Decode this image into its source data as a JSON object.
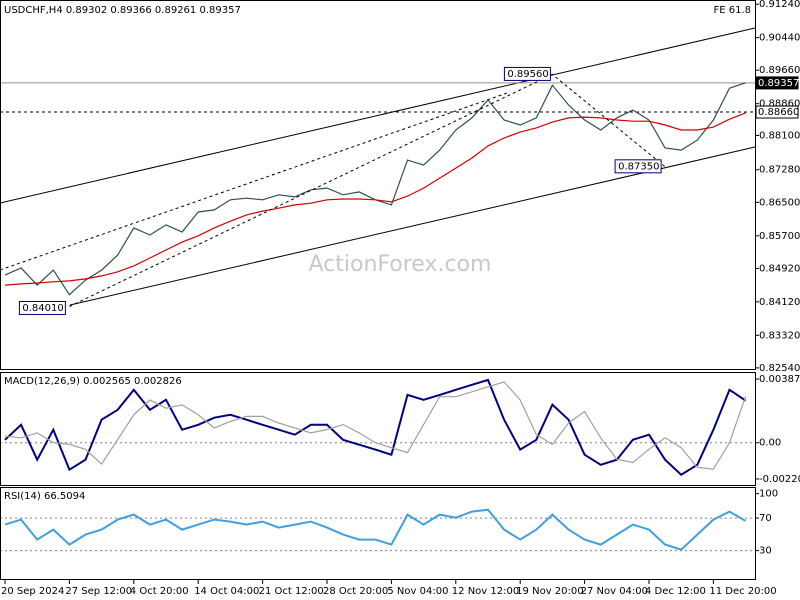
{
  "chart_data": [
    {
      "type": "line",
      "title": "USDCHF,H4  0.89302 0.89366 0.89261 0.89357",
      "fe_label": "FE 61.8",
      "watermark": "ActionForex.com",
      "categories": [
        "20 Sep 2024",
        null,
        null,
        null,
        "27 Sep 12:00",
        null,
        null,
        null,
        "4 Oct 20:00",
        null,
        null,
        null,
        "14 Oct 04:00",
        null,
        null,
        null,
        "21 Oct 12:00",
        null,
        null,
        null,
        "28 Oct 20:00",
        null,
        null,
        null,
        "5 Nov 04:00",
        null,
        null,
        null,
        "12 Nov 12:00",
        null,
        null,
        null,
        "19 Nov 20:00",
        null,
        null,
        null,
        "27 Nov 04:00",
        null,
        null,
        null,
        "4 Dec 12:00",
        null,
        null,
        null,
        "11 Dec 20:00",
        null,
        null
      ],
      "series": [
        {
          "color": "#2f4f4f",
          "values": [
            0.8476,
            0.8493,
            0.8452,
            0.8488,
            0.8429,
            0.8464,
            0.8488,
            0.8524,
            0.8589,
            0.8572,
            0.8596,
            0.8579,
            0.8627,
            0.8632,
            0.8656,
            0.866,
            0.8656,
            0.8668,
            0.8663,
            0.868,
            0.8684,
            0.8668,
            0.8675,
            0.8656,
            0.8644,
            0.8751,
            0.8739,
            0.8775,
            0.8823,
            0.8852,
            0.8895,
            0.8847,
            0.8835,
            0.8852,
            0.893,
            0.8883,
            0.8847,
            0.8823,
            0.8852,
            0.8871,
            0.8847,
            0.878,
            0.8775,
            0.8799,
            0.8847,
            0.8923,
            0.8936
          ]
        },
        {
          "color": "#d00000",
          "values": [
            0.8452,
            0.8455,
            0.8457,
            0.846,
            0.8462,
            0.8467,
            0.8474,
            0.8484,
            0.8498,
            0.8517,
            0.8536,
            0.8555,
            0.857,
            0.8589,
            0.8605,
            0.862,
            0.8629,
            0.8636,
            0.8644,
            0.8648,
            0.8656,
            0.8658,
            0.8658,
            0.8656,
            0.8651,
            0.8665,
            0.8684,
            0.8708,
            0.8732,
            0.8756,
            0.8785,
            0.8804,
            0.8818,
            0.8828,
            0.8842,
            0.8852,
            0.8854,
            0.8852,
            0.8847,
            0.8844,
            0.8844,
            0.8835,
            0.8823,
            0.8823,
            0.883,
            0.8849,
            0.8864
          ]
        }
      ],
      "ylim": [
        0.8249,
        0.9134
      ],
      "yticks": [
        {
          "value": 0.9124,
          "label": "0.91240"
        },
        {
          "value": 0.9044,
          "label": "0.90440"
        },
        {
          "value": 0.8966,
          "label": "0.89660"
        },
        {
          "value": 0.8886,
          "label": "0.88860"
        },
        {
          "value": 0.881,
          "label": "0.88100"
        },
        {
          "value": 0.8728,
          "label": "0.87280"
        },
        {
          "value": 0.865,
          "label": "0.86500"
        },
        {
          "value": 0.857,
          "label": "0.85700"
        },
        {
          "value": 0.8492,
          "label": "0.84920"
        },
        {
          "value": 0.8412,
          "label": "0.84120"
        },
        {
          "value": 0.8332,
          "label": "0.83320"
        },
        {
          "value": 0.8254,
          "label": "0.82540"
        }
      ],
      "price_lines": [
        {
          "value": 0.89357,
          "label": "0.89357",
          "style": "solid"
        },
        {
          "value": 0.8866,
          "label": "0.88660",
          "style": "dotted"
        }
      ],
      "annotations": [
        {
          "value": 0.8401,
          "label": "0.84010",
          "at": 4
        },
        {
          "value": 0.8956,
          "label": "0.89560",
          "at": 34
        },
        {
          "value": 0.8735,
          "label": "0.87350",
          "at": 41
        }
      ]
    },
    {
      "type": "line",
      "title": "MACD(12,26,9) 0.002565 0.002826",
      "series": [
        {
          "color": "#000080",
          "values": [
            0.00018,
            0.00109,
            -0.00103,
            0.00079,
            -0.00164,
            -0.00103,
            0.0014,
            0.002,
            0.00322,
            0.002,
            0.00261,
            0.00079,
            0.00109,
            0.00152,
            0.0017,
            0.0014,
            0.00109,
            0.00079,
            0.00049,
            0.00109,
            0.00109,
            0.00018,
            -0.00012,
            -0.00042,
            -0.00073,
            0.00291,
            0.00261,
            0.00291,
            0.00322,
            0.00352,
            0.00382,
            0.0014,
            -0.00042,
            0.00018,
            0.00231,
            0.0014,
            -0.00073,
            -0.00134,
            -0.00103,
            0.00018,
            0.00049,
            -0.00103,
            -0.00194,
            -0.00134,
            0.00079,
            0.00322,
            0.002565
          ]
        },
        {
          "color": "#a0a0a0",
          "values": [
            0.0004,
            0.0003,
            0.0006,
            0.0,
            -0.0001,
            -0.0004,
            -0.0013,
            0.0002,
            0.0017,
            0.0026,
            0.0021,
            0.0023,
            0.0017,
            0.0009,
            0.0013,
            0.0016,
            0.0016,
            0.0012,
            0.0009,
            0.0006,
            0.0008,
            0.0011,
            0.0006,
            0.0,
            -0.0003,
            -0.0006,
            0.0011,
            0.0028,
            0.0028,
            0.0031,
            0.0034,
            0.0037,
            0.0026,
            0.0005,
            -0.0001,
            0.0012,
            0.0019,
            0.0003,
            -0.001,
            -0.0012,
            -0.0004,
            0.0003,
            -0.0003,
            -0.0015,
            -0.0016,
            0.0,
            0.002826
          ]
        }
      ],
      "ylim": [
        -0.00263,
        0.00424
      ],
      "yticks": [
        0.003873,
        {
          "value": 0,
          "label": "0.00"
        },
        -0.002201
      ],
      "levels": [
        0
      ]
    },
    {
      "type": "line",
      "title": "RSI(14) 66.5094",
      "series": [
        {
          "color": "#3ea0e0",
          "values": [
            61.9,
            68.1,
            43.5,
            55.8,
            37.3,
            49.6,
            55.8,
            68.1,
            74.2,
            61.9,
            68.1,
            55.8,
            61.9,
            68.1,
            65.6,
            61.9,
            65.6,
            58.2,
            61.9,
            65.6,
            58.2,
            49.6,
            43.5,
            43.5,
            37.3,
            74.2,
            61.9,
            74.2,
            70.5,
            77.9,
            80.3,
            55.8,
            43.5,
            55.8,
            74.2,
            55.8,
            43.5,
            37.3,
            49.6,
            61.9,
            55.8,
            37.3,
            31.2,
            49.6,
            68.1,
            77.9,
            66.5094
          ]
        }
      ],
      "ylim": [
        -5,
        107
      ],
      "yticks": [
        100,
        70,
        30
      ],
      "levels": [
        70,
        30
      ]
    }
  ]
}
